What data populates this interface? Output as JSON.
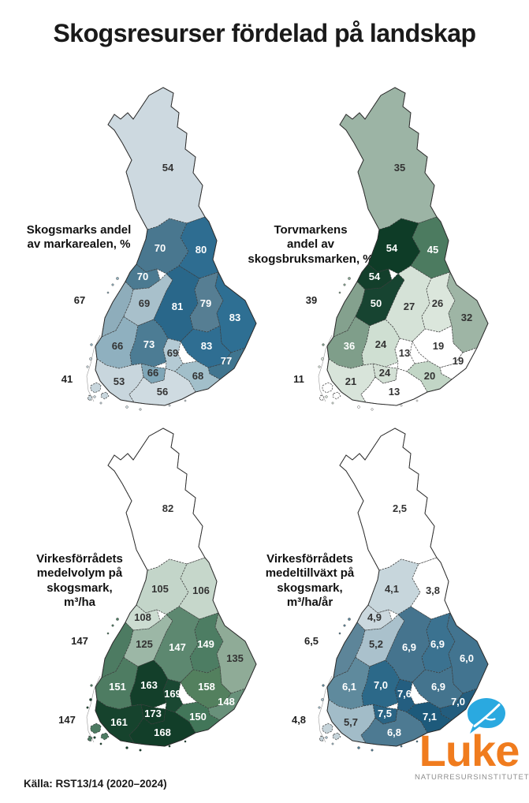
{
  "title": "Skogsresurser fördelad på landskap",
  "source": "Källa: RST13/14 (2020–2024)",
  "logo": {
    "wordmark": "Luke",
    "subtitle": "NATURRESURSINSTITUTET",
    "wordmark_color": "#f07c1e",
    "bubble_color": "#2aa9e0",
    "subtitle_color": "#8d8d8d"
  },
  "chart_data": [
    {
      "type": "heatmap",
      "id": "skogsmark-andel",
      "caption_lines": [
        "Skogsmarks andel",
        "av markarealen, %"
      ],
      "unit": "%",
      "regions": [
        {
          "value": "54",
          "color": "#cdd9e0"
        },
        {
          "value": "70",
          "color": "#49778f"
        },
        {
          "value": "80",
          "color": "#2e6d91"
        },
        {
          "value": "70",
          "color": "#4b7a91"
        },
        {
          "value": "67",
          "color": "#8eadbb"
        },
        {
          "value": "69",
          "color": "#a8c0cb"
        },
        {
          "value": "81",
          "color": "#29678a"
        },
        {
          "value": "79",
          "color": "#567e93"
        },
        {
          "value": "83",
          "color": "#2e6f93"
        },
        {
          "value": "66",
          "color": "#8fb0bf"
        },
        {
          "value": "73",
          "color": "#4c7c94"
        },
        {
          "value": "69",
          "color": "#b4cad4"
        },
        {
          "value": "83",
          "color": "#2f6e92"
        },
        {
          "value": "77",
          "color": "#40758f"
        },
        {
          "value": "66",
          "color": "#7fa6b7"
        },
        {
          "value": "68",
          "color": "#a2bfca"
        },
        {
          "value": "53",
          "color": "#c8d6dd"
        },
        {
          "value": "56",
          "color": "#cfdbe1"
        },
        {
          "value": "41",
          "color": "#c8d6dd"
        }
      ]
    },
    {
      "type": "heatmap",
      "id": "torvmark-andel",
      "caption_lines": [
        "Torvmarkens",
        "andel av",
        "skogsbruksmarken, %"
      ],
      "unit": "%",
      "regions": [
        {
          "value": "35",
          "color": "#9cb4a5"
        },
        {
          "value": "54",
          "color": "#0e3c27"
        },
        {
          "value": "45",
          "color": "#4c7b60"
        },
        {
          "value": "54",
          "color": "#133f2b"
        },
        {
          "value": "39",
          "color": "#84a18e"
        },
        {
          "value": "50",
          "color": "#174431"
        },
        {
          "value": "27",
          "color": "#d5e2d7"
        },
        {
          "value": "26",
          "color": "#dbe6dc"
        },
        {
          "value": "32",
          "color": "#9eb5a5"
        },
        {
          "value": "36",
          "color": "#7f9e8a"
        },
        {
          "value": "24",
          "color": "#cfdfd2"
        },
        {
          "value": "13",
          "color": "#ffffff"
        },
        {
          "value": "19",
          "color": "#ffffff"
        },
        {
          "value": "19",
          "color": "#ffffff"
        },
        {
          "value": "24",
          "color": "#d3e0d5"
        },
        {
          "value": "20",
          "color": "#c2d6c6"
        },
        {
          "value": "21",
          "color": "#d8e4da"
        },
        {
          "value": "13",
          "color": "#ffffff"
        },
        {
          "value": "11",
          "color": "#ffffff"
        }
      ]
    },
    {
      "type": "heatmap",
      "id": "medelvolym",
      "caption_lines": [
        "Virkesförrådets",
        "medelvolym på",
        "skogsmark,",
        "m³/ha"
      ],
      "unit": "m³/ha",
      "regions": [
        {
          "value": "82",
          "color": "#ffffff"
        },
        {
          "value": "105",
          "color": "#c3d5c9"
        },
        {
          "value": "106",
          "color": "#c6d7cb"
        },
        {
          "value": "108",
          "color": "#ccdcd1"
        },
        {
          "value": "147",
          "color": "#4d7b62"
        },
        {
          "value": "125",
          "color": "#9cb7a6"
        },
        {
          "value": "147",
          "color": "#5d8870"
        },
        {
          "value": "149",
          "color": "#4d7d63"
        },
        {
          "value": "135",
          "color": "#8fab97"
        },
        {
          "value": "151",
          "color": "#4e7c62"
        },
        {
          "value": "163",
          "color": "#133f2a"
        },
        {
          "value": "169",
          "color": "#1a4832"
        },
        {
          "value": "158",
          "color": "#53805e"
        },
        {
          "value": "148",
          "color": "#68917a"
        },
        {
          "value": "173",
          "color": "#123d28"
        },
        {
          "value": "150",
          "color": "#427659"
        },
        {
          "value": "161",
          "color": "#16432d"
        },
        {
          "value": "168",
          "color": "#123e29"
        },
        {
          "value": "147",
          "color": "#4d7b62"
        }
      ]
    },
    {
      "type": "heatmap",
      "id": "medeltillvaxt",
      "caption_lines": [
        "Virkesförrådets",
        "medeltillväxt på",
        "skogsmark,",
        "m³/ha/år"
      ],
      "unit": "m³/ha/år",
      "regions": [
        {
          "value": "2,5",
          "color": "#ffffff"
        },
        {
          "value": "4,1",
          "color": "#c7d6dc"
        },
        {
          "value": "3,8",
          "color": "#ffffff"
        },
        {
          "value": "4,9",
          "color": "#cbd8de"
        },
        {
          "value": "6,5",
          "color": "#5d8599"
        },
        {
          "value": "5,2",
          "color": "#aac1cc"
        },
        {
          "value": "6,9",
          "color": "#45748e"
        },
        {
          "value": "6,9",
          "color": "#3b7290"
        },
        {
          "value": "6,0",
          "color": "#427490"
        },
        {
          "value": "6,1",
          "color": "#5f8a9d"
        },
        {
          "value": "7,0",
          "color": "#2c6989"
        },
        {
          "value": "7,6",
          "color": "#245e80"
        },
        {
          "value": "6,9",
          "color": "#44748e"
        },
        {
          "value": "7,0",
          "color": "#235d7e"
        },
        {
          "value": "7,5",
          "color": "#2a6484"
        },
        {
          "value": "7,1",
          "color": "#1d5a7b"
        },
        {
          "value": "5,7",
          "color": "#a2bcc8"
        },
        {
          "value": "6,8",
          "color": "#4d7a92"
        },
        {
          "value": "4,8",
          "color": "#c6d4da"
        }
      ]
    }
  ]
}
